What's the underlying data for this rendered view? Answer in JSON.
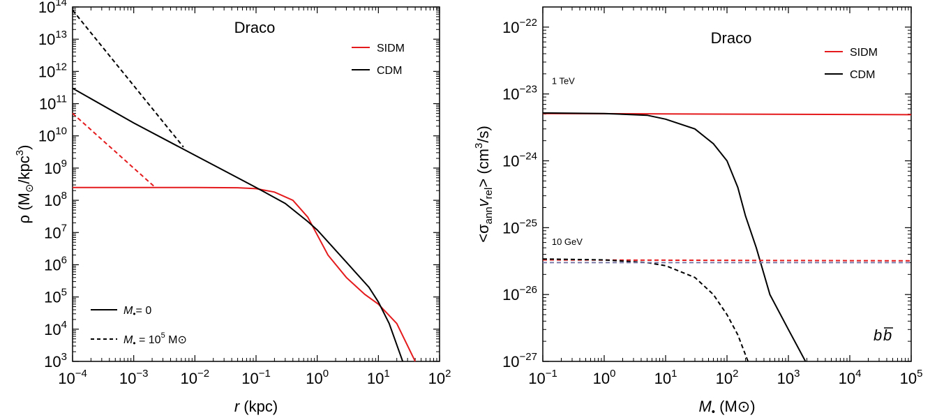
{
  "chart_data": [
    {
      "type": "line",
      "title": "Draco",
      "xlabel": {
        "sym": "r",
        "unit": " (kpc)"
      },
      "ylabel": {
        "pre": "ρ (M",
        "sun": "⊙",
        "mid": "/kpc",
        "sup": "3",
        "post": ")"
      },
      "xscale": "log",
      "yscale": "log",
      "xlim": [
        0.0001,
        100
      ],
      "ylim": [
        1000,
        100000000000000.0
      ],
      "xtick_exps": [
        "-4",
        "-3",
        "-2",
        "-1",
        "0",
        "1",
        "2"
      ],
      "ytick_exps": [
        "3",
        "4",
        "5",
        "6",
        "7",
        "8",
        "9",
        "10",
        "11",
        "12",
        "13",
        "14"
      ],
      "tick_base": "10",
      "legend_color": [
        {
          "name": "SIDM",
          "color": "#e41a1c"
        },
        {
          "name": "CDM",
          "color": "#000000"
        }
      ],
      "legend_style": [
        {
          "sym": "M",
          "sub": "•",
          "text": "= 0",
          "dash": false
        },
        {
          "sym": "M",
          "sub": "•",
          "text": " = 10",
          "sup": "5",
          "unit": " M⊙",
          "dash": true
        }
      ],
      "series": [
        {
          "color": "#e41a1c",
          "dash": false,
          "points": [
            [
              0.0001,
              250000000.0
            ],
            [
              0.001,
              250000000.0
            ],
            [
              0.01,
              250000000.0
            ],
            [
              0.05,
              245000000.0
            ],
            [
              0.1,
              230000000.0
            ],
            [
              0.2,
              180000000.0
            ],
            [
              0.4,
              100000000.0
            ],
            [
              0.7,
              30000000.0
            ],
            [
              1.5,
              2000000.0
            ],
            [
              3,
              400000.0
            ],
            [
              6,
              120000.0
            ],
            [
              10,
              60000.0
            ],
            [
              20,
              15000.0
            ],
            [
              40,
              1000
            ]
          ]
        },
        {
          "color": "#e41a1c",
          "dash": true,
          "points": [
            [
              0.0001,
              50000000000.0
            ],
            [
              0.0022,
              260000000.0
            ]
          ]
        },
        {
          "color": "#000000",
          "dash": false,
          "points": [
            [
              0.0001,
              300000000000.0
            ],
            [
              0.001,
              25000000000.0
            ],
            [
              0.01,
              2500000000.0
            ],
            [
              0.1,
              250000000.0
            ],
            [
              0.3,
              80000000.0
            ],
            [
              0.7,
              22000000.0
            ],
            [
              1,
              12000000.0
            ],
            [
              3,
              1200000.0
            ],
            [
              7,
              200000.0
            ],
            [
              10,
              70000.0
            ],
            [
              15,
              15000.0
            ],
            [
              25,
              1000
            ]
          ]
        },
        {
          "color": "#000000",
          "dash": true,
          "points": [
            [
              0.0001,
              80000000000000.0
            ],
            [
              0.0065,
              4500000000.0
            ]
          ]
        }
      ]
    },
    {
      "type": "line",
      "title": "Draco",
      "xlabel": {
        "sym": "M",
        "sub": "•",
        "unit": " (M⊙)"
      },
      "ylabel": {
        "pre": "<σ",
        "sub1": "ann",
        "mid": "v",
        "sub2": "rel",
        "post": "> (cm",
        "sup": "3",
        "post2": "/s)"
      },
      "xscale": "log",
      "yscale": "log",
      "xlim": [
        0.1,
        100000
      ],
      "ylim": [
        1e-27,
        2e-22
      ],
      "xtick_exps": [
        "-1",
        "0",
        "1",
        "2",
        "3",
        "4",
        "5"
      ],
      "ytick_exps": [
        "-27",
        "-26",
        "-25",
        "-24",
        "-23",
        "-22"
      ],
      "tick_base": "10",
      "legend_color": [
        {
          "name": "SIDM",
          "color": "#e41a1c"
        },
        {
          "name": "CDM",
          "color": "#000000"
        }
      ],
      "annotations": [
        {
          "text": "1 TeV",
          "x": 0.14,
          "y": 1.4e-23
        },
        {
          "text": "10 GeV",
          "x": 0.14,
          "y": 5.5e-26
        }
      ],
      "channel_label": {
        "base": "b",
        "bar": "b"
      },
      "series": [
        {
          "color": "#e41a1c",
          "dash": false,
          "points": [
            [
              0.1,
              5.1e-24
            ],
            [
              100000,
              4.9e-24
            ]
          ]
        },
        {
          "color": "#000000",
          "dash": false,
          "points": [
            [
              0.1,
              5.2e-24
            ],
            [
              1,
              5.1e-24
            ],
            [
              5,
              4.8e-24
            ],
            [
              10,
              4.2e-24
            ],
            [
              30,
              3e-24
            ],
            [
              60,
              1.8e-24
            ],
            [
              100,
              1e-24
            ],
            [
              150,
              4e-25
            ],
            [
              200,
              1.5e-25
            ],
            [
              300,
              5e-26
            ],
            [
              500,
              1e-26
            ],
            [
              1000,
              3e-27
            ],
            [
              1900,
              1e-27
            ]
          ]
        },
        {
          "color": "#e41a1c",
          "dash": true,
          "points": [
            [
              0.1,
              3.3e-26
            ],
            [
              100000,
              3.2e-26
            ]
          ]
        },
        {
          "color": "#000000",
          "dash": true,
          "points": [
            [
              0.1,
              3.4e-26
            ],
            [
              1,
              3.3e-26
            ],
            [
              5,
              3e-26
            ],
            [
              10,
              2.7e-26
            ],
            [
              30,
              1.8e-26
            ],
            [
              60,
              1e-26
            ],
            [
              100,
              5e-27
            ],
            [
              150,
              2.5e-27
            ],
            [
              220,
              1e-27
            ]
          ]
        },
        {
          "color": "#7a7aa8",
          "dash": true,
          "points": [
            [
              0.1,
              3e-26
            ],
            [
              100000,
              3e-26
            ]
          ]
        }
      ]
    }
  ]
}
